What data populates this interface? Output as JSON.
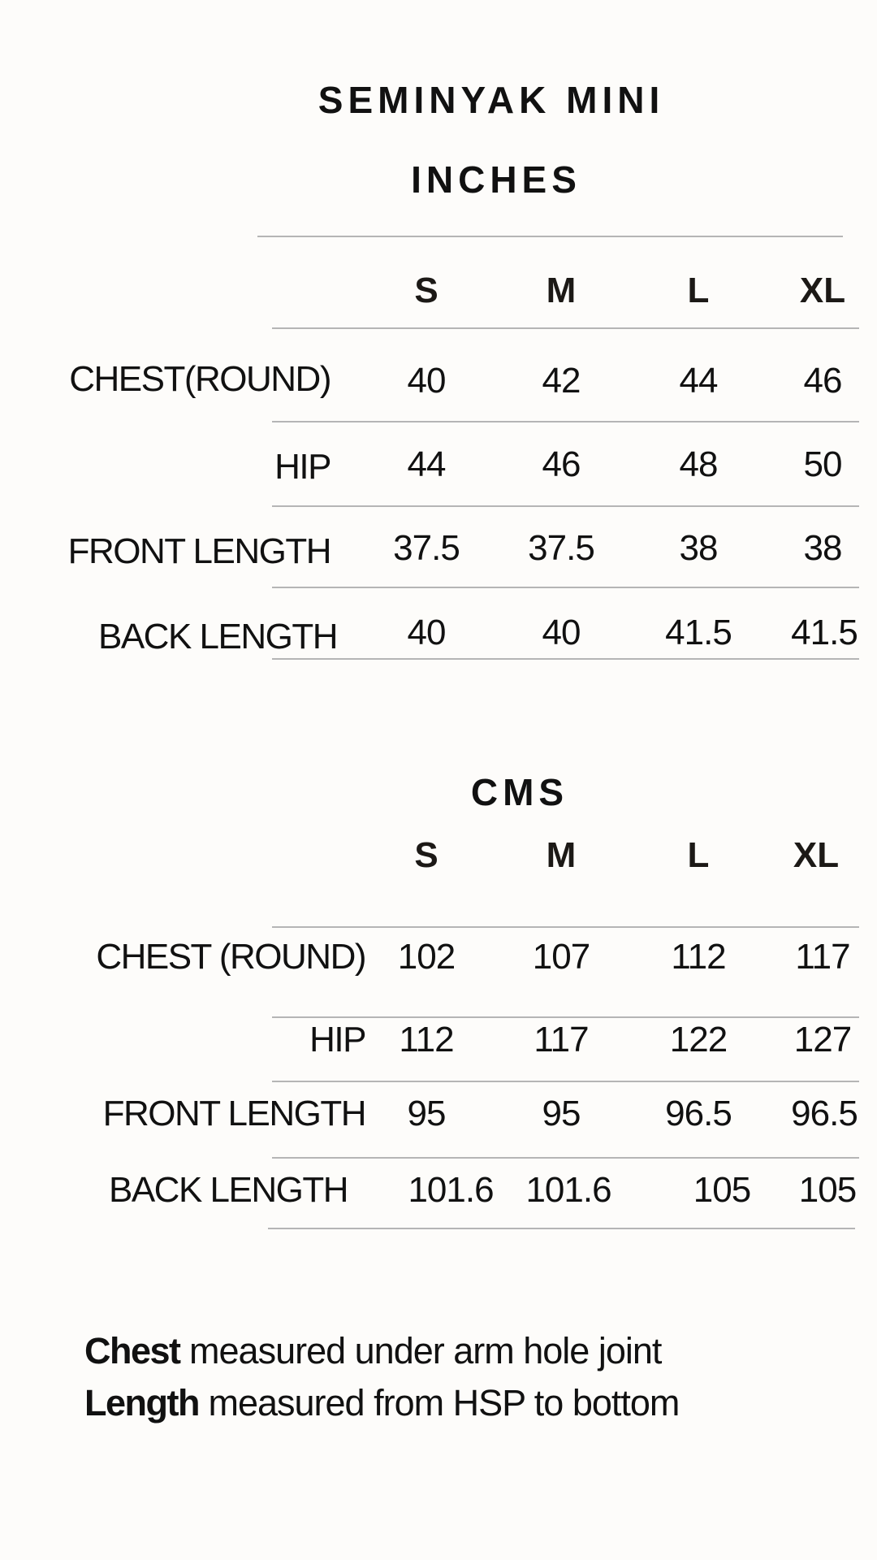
{
  "title": "SEMINYAK MINI",
  "inches": {
    "heading": "INCHES",
    "sizes": [
      "S",
      "M",
      "L",
      "XL"
    ],
    "rows": [
      {
        "label": "CHEST(ROUND)",
        "values": [
          "40",
          "42",
          "44",
          "46"
        ]
      },
      {
        "label": "HIP",
        "values": [
          "44",
          "46",
          "48",
          "50"
        ]
      },
      {
        "label": "FRONT LENGTH",
        "values": [
          "37.5",
          "37.5",
          "38",
          "38"
        ]
      },
      {
        "label": "BACK  LENGTH",
        "values": [
          "40",
          "40",
          "41.5",
          "41.5"
        ]
      }
    ]
  },
  "cms": {
    "heading": "CMS",
    "sizes": [
      "S",
      "M",
      "L",
      "XL"
    ],
    "rows": [
      {
        "label": "CHEST (ROUND)",
        "values": [
          "102",
          "107",
          "112",
          "117"
        ]
      },
      {
        "label": "HIP",
        "values": [
          "112",
          "117",
          "122",
          "127"
        ]
      },
      {
        "label": "FRONT LENGTH",
        "values": [
          "95",
          "95",
          "96.5",
          "96.5"
        ]
      },
      {
        "label": "BACK LENGTH",
        "values": [
          "101.6",
          "101.6",
          "105",
          "105"
        ]
      }
    ]
  },
  "notes": [
    {
      "term": "Chest",
      "text": " measured under arm hole joint"
    },
    {
      "term": "Length",
      "text": " measured from HSP to bottom"
    }
  ]
}
